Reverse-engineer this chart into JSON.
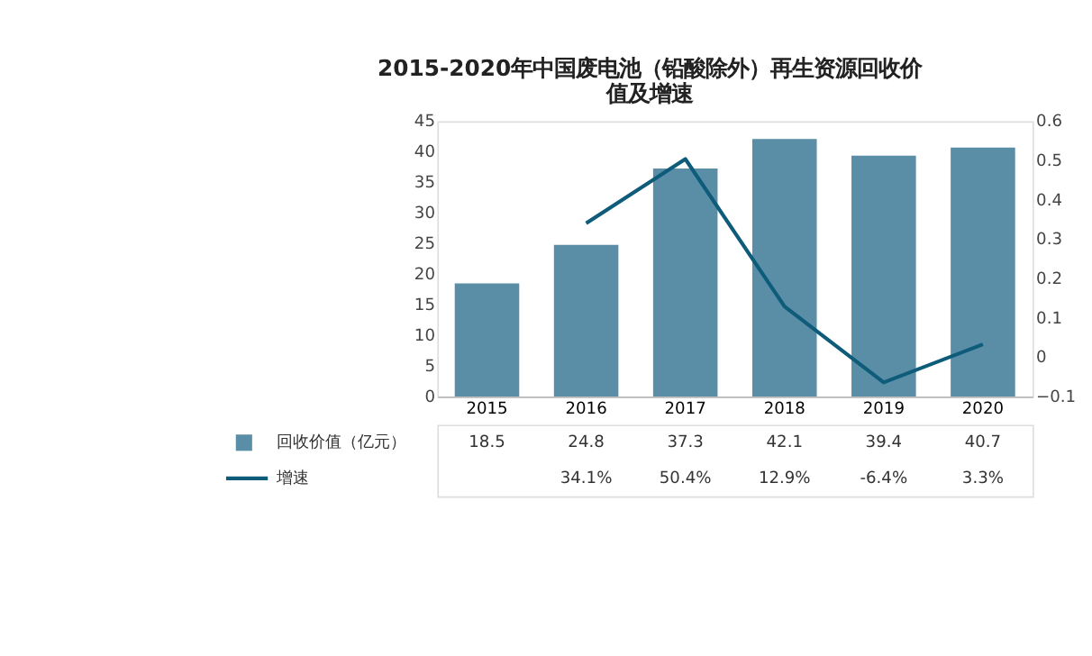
{
  "chart_data": {
    "type": "bar",
    "title": "2015-2020年中国废电池（铅酸除外）再生资源回收价值及增速",
    "categories": [
      "2015",
      "2016",
      "2017",
      "2018",
      "2019",
      "2020"
    ],
    "series": [
      {
        "name": "回收价值（亿元）",
        "color": "#5a8ea6",
        "values": [
          18.5,
          24.8,
          37.3,
          42.1,
          39.4,
          40.7
        ],
        "value_labels": [
          "18.5",
          "24.8",
          "37.3",
          "42.1",
          "39.4",
          "40.7"
        ]
      },
      {
        "name": "增速",
        "type": "line",
        "axis": "y2",
        "color": "#0e5c7a",
        "values": [
          null,
          0.341,
          0.504,
          0.129,
          -0.064,
          0.033
        ],
        "value_labels": [
          null,
          "34.1%",
          "50.4%",
          "12.9%",
          "-6.4%",
          "3.3%"
        ]
      }
    ],
    "ylim": [
      0,
      45
    ],
    "yticks": [
      0,
      5,
      10,
      15,
      20,
      25,
      30,
      35,
      40,
      45
    ],
    "y2lim": [
      -0.1,
      0.6
    ],
    "y2ticks": [
      -0.1,
      0,
      0.1,
      0.2,
      0.3,
      0.4,
      0.5,
      0.6
    ],
    "grid": false,
    "legend": "bottom",
    "marker": "none",
    "line_style": "solid"
  }
}
